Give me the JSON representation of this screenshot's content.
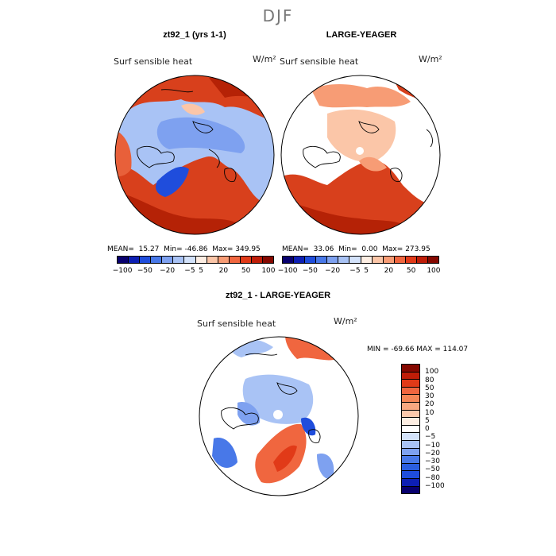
{
  "season": "DJF",
  "panel_left": {
    "title": "zt92_1 (yrs 1-1)",
    "variable": "Surf sensible heat",
    "unit": "W/m²",
    "mean_label": "MEAN=",
    "mean": "15.27",
    "min_label": "Min=",
    "min": "-46.86",
    "max_label": "Max=",
    "max": "349.95"
  },
  "panel_right": {
    "title": "LARGE-YEAGER",
    "variable": "Surf sensible heat",
    "unit": "W/m²",
    "mean_label": "MEAN=",
    "mean": "33.06",
    "min_label": "Min=",
    "min": "0.00",
    "max_label": "Max=",
    "max": "273.95"
  },
  "panel_diff": {
    "title": "zt92_1 - LARGE-YEAGER",
    "variable": "Surf sensible heat",
    "unit": "W/m²",
    "stats": "MIN = -69.66 MAX = 114.07"
  },
  "colorbar_top": {
    "colors": [
      "#08006e",
      "#0d1fb4",
      "#1f4ddc",
      "#4878e8",
      "#7ea1f0",
      "#a9c3f5",
      "#d3e2fa",
      "#fdeee3",
      "#fbc6a8",
      "#f79c75",
      "#f0663f",
      "#e13a18",
      "#bf1d08",
      "#850800"
    ],
    "labels": [
      "−100",
      "−50",
      "−20",
      "−5",
      "5",
      "20",
      "50",
      "100"
    ]
  },
  "colorbar_diff": {
    "colors": [
      "#850800",
      "#bf1d08",
      "#e13a18",
      "#f0663f",
      "#f58656",
      "#f8a880",
      "#fbc9ac",
      "#fdeee3",
      "#ffffff",
      "#d3e2fa",
      "#a9c3f5",
      "#7ea1f0",
      "#4878e8",
      "#2b5ee0",
      "#1f4ddc",
      "#0d1fb4",
      "#08006e"
    ],
    "labels": [
      "100",
      "80",
      "50",
      "30",
      "20",
      "10",
      "5",
      "0",
      "−5",
      "−10",
      "−20",
      "−30",
      "−50",
      "−80",
      "−100"
    ]
  },
  "map_colors": {
    "land_warm": "#d8401c",
    "land_warm_dark": "#b52206",
    "ocean_cool": "#a9c3f5",
    "ocean_cool_mid": "#7ea1f0",
    "deep_blue": "#1f4ddc",
    "pale": "#fbc6a8",
    "pale2": "#fde0cc",
    "white": "#ffffff"
  }
}
